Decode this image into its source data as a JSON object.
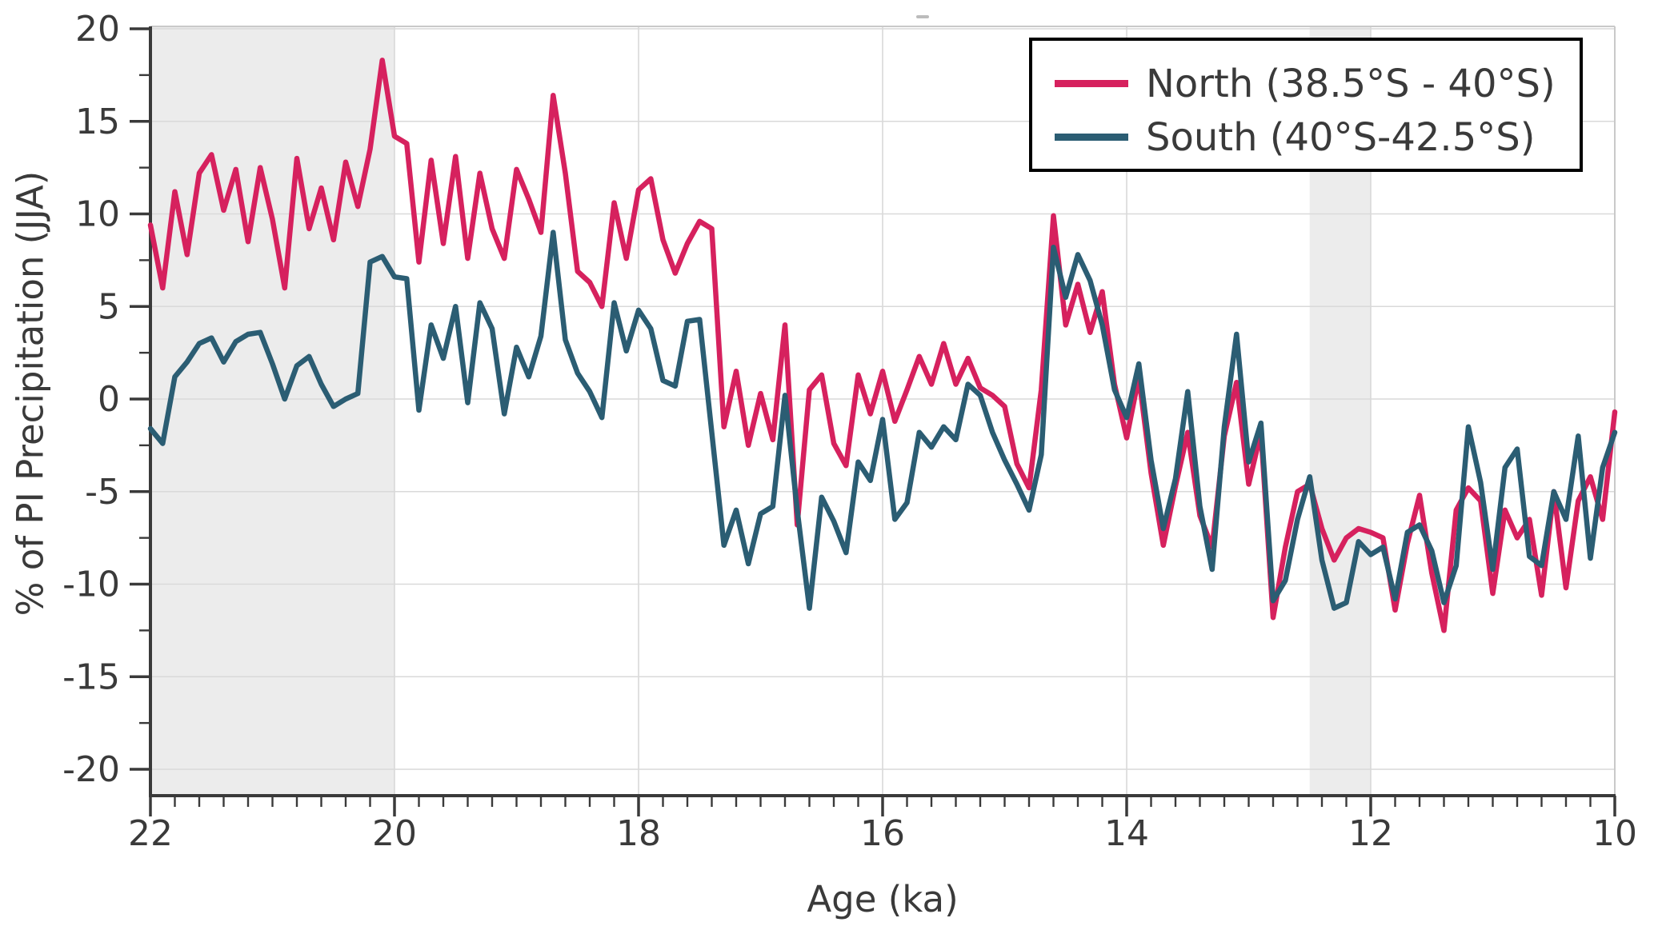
{
  "axes": {
    "xlabel": "Age (ka)",
    "ylabel": "% of PI Precipitation (JJA)",
    "x_range": [
      22,
      10
    ],
    "y_range": [
      -20,
      20
    ],
    "x_major_ticks": [
      22,
      20,
      18,
      16,
      14,
      12,
      10
    ],
    "y_major_ticks": [
      20,
      15,
      10,
      5,
      0,
      -5,
      -10,
      -15,
      -20
    ],
    "x_minor_step": 0.2,
    "y_minor_ticks": [
      17.5,
      12.5,
      7.5,
      2.5,
      -2.5,
      -7.5,
      -12.5,
      -17.5
    ],
    "grid": "on",
    "grid_color": "#d9d9d9",
    "spine_dark_color": "#3a3a3a",
    "spine_light_color": "#c9c9c9",
    "shaded_band_color": "#ececec"
  },
  "legend": {
    "position": "upper right",
    "items": [
      {
        "label": "North (38.5°S - 40°S)",
        "color": "#d6215e"
      },
      {
        "label": " South (40°S-42.5°S)",
        "color": "#2b5d73"
      }
    ]
  },
  "shaded_regions": [
    {
      "x_from": 22.0,
      "x_to": 20.0
    },
    {
      "x_from": 12.5,
      "x_to": 12.0
    }
  ],
  "chart_data": {
    "type": "line",
    "title": "",
    "xlabel": "Age (ka)",
    "ylabel": "% of PI Precipitation (JJA)",
    "xlim": [
      22,
      10
    ],
    "ylim": [
      -20,
      20
    ],
    "x_start": 22.0,
    "x_step": -0.1,
    "x_unit": "ka",
    "series": [
      {
        "name": "North (38.5°S - 40°S)",
        "color": "#d6215e",
        "values": [
          9.4,
          6.0,
          11.2,
          7.8,
          12.2,
          13.2,
          10.2,
          12.4,
          8.5,
          12.5,
          9.7,
          6.0,
          13.0,
          9.2,
          11.4,
          8.6,
          12.8,
          10.4,
          13.5,
          18.3,
          14.2,
          13.8,
          7.4,
          12.9,
          8.4,
          13.1,
          7.6,
          12.2,
          9.2,
          7.6,
          12.4,
          10.8,
          9.0,
          16.4,
          12.2,
          6.9,
          6.3,
          5.0,
          10.6,
          7.6,
          11.3,
          11.9,
          8.6,
          6.8,
          8.4,
          9.6,
          9.2,
          -1.5,
          1.5,
          -2.5,
          0.3,
          -2.2,
          4.0,
          -6.8,
          0.5,
          1.3,
          -2.4,
          -3.6,
          1.3,
          -0.8,
          1.5,
          -1.2,
          0.5,
          2.3,
          0.8,
          3.0,
          0.8,
          2.2,
          0.6,
          0.2,
          -0.4,
          -3.5,
          -4.8,
          0.5,
          9.9,
          4.0,
          6.2,
          3.6,
          5.8,
          0.8,
          -2.1,
          1.2,
          -4.0,
          -7.9,
          -4.7,
          -1.8,
          -6.3,
          -8.0,
          -2.0,
          0.9,
          -4.6,
          -1.8,
          -11.8,
          -8.0,
          -5.0,
          -4.6,
          -7.0,
          -8.7,
          -7.5,
          -7.0,
          -7.2,
          -7.5,
          -11.4,
          -7.8,
          -5.2,
          -9.4,
          -12.5,
          -6.0,
          -4.8,
          -5.5,
          -10.5,
          -6.0,
          -7.5,
          -6.5,
          -10.6,
          -5.0,
          -10.2,
          -5.5,
          -4.2,
          -6.5,
          -0.7
        ]
      },
      {
        "name": "South (40°S-42.5°S)",
        "color": "#2b5d73",
        "values": [
          -1.6,
          -2.4,
          1.2,
          2.0,
          3.0,
          3.3,
          2.0,
          3.1,
          3.5,
          3.6,
          1.9,
          0.0,
          1.8,
          2.3,
          0.8,
          -0.4,
          0.0,
          0.3,
          7.4,
          7.7,
          6.6,
          6.5,
          -0.6,
          4.0,
          2.2,
          5.0,
          -0.2,
          5.2,
          3.8,
          -0.8,
          2.8,
          1.2,
          3.4,
          9.0,
          3.2,
          1.4,
          0.4,
          -1.0,
          5.2,
          2.6,
          4.8,
          3.8,
          1.0,
          0.7,
          4.2,
          4.3,
          -1.8,
          -7.9,
          -6.0,
          -8.9,
          -6.2,
          -5.8,
          0.2,
          -6.0,
          -11.3,
          -5.3,
          -6.6,
          -8.3,
          -3.4,
          -4.4,
          -1.1,
          -6.5,
          -5.6,
          -1.8,
          -2.6,
          -1.5,
          -2.2,
          0.8,
          0.2,
          -1.8,
          -3.3,
          -4.6,
          -6.0,
          -3.0,
          8.2,
          5.5,
          7.8,
          6.4,
          4.0,
          0.5,
          -1.0,
          1.9,
          -3.3,
          -7.0,
          -4.3,
          0.4,
          -5.8,
          -9.2,
          -1.5,
          3.5,
          -3.4,
          -1.3,
          -10.9,
          -9.8,
          -6.5,
          -4.2,
          -8.7,
          -11.3,
          -11.0,
          -7.7,
          -8.4,
          -8.0,
          -10.8,
          -7.2,
          -6.8,
          -8.2,
          -11.0,
          -9.0,
          -1.5,
          -4.5,
          -9.2,
          -3.7,
          -2.7,
          -8.5,
          -9.0,
          -5.0,
          -6.5,
          -2.0,
          -8.6,
          -3.7,
          -1.8
        ]
      }
    ]
  }
}
